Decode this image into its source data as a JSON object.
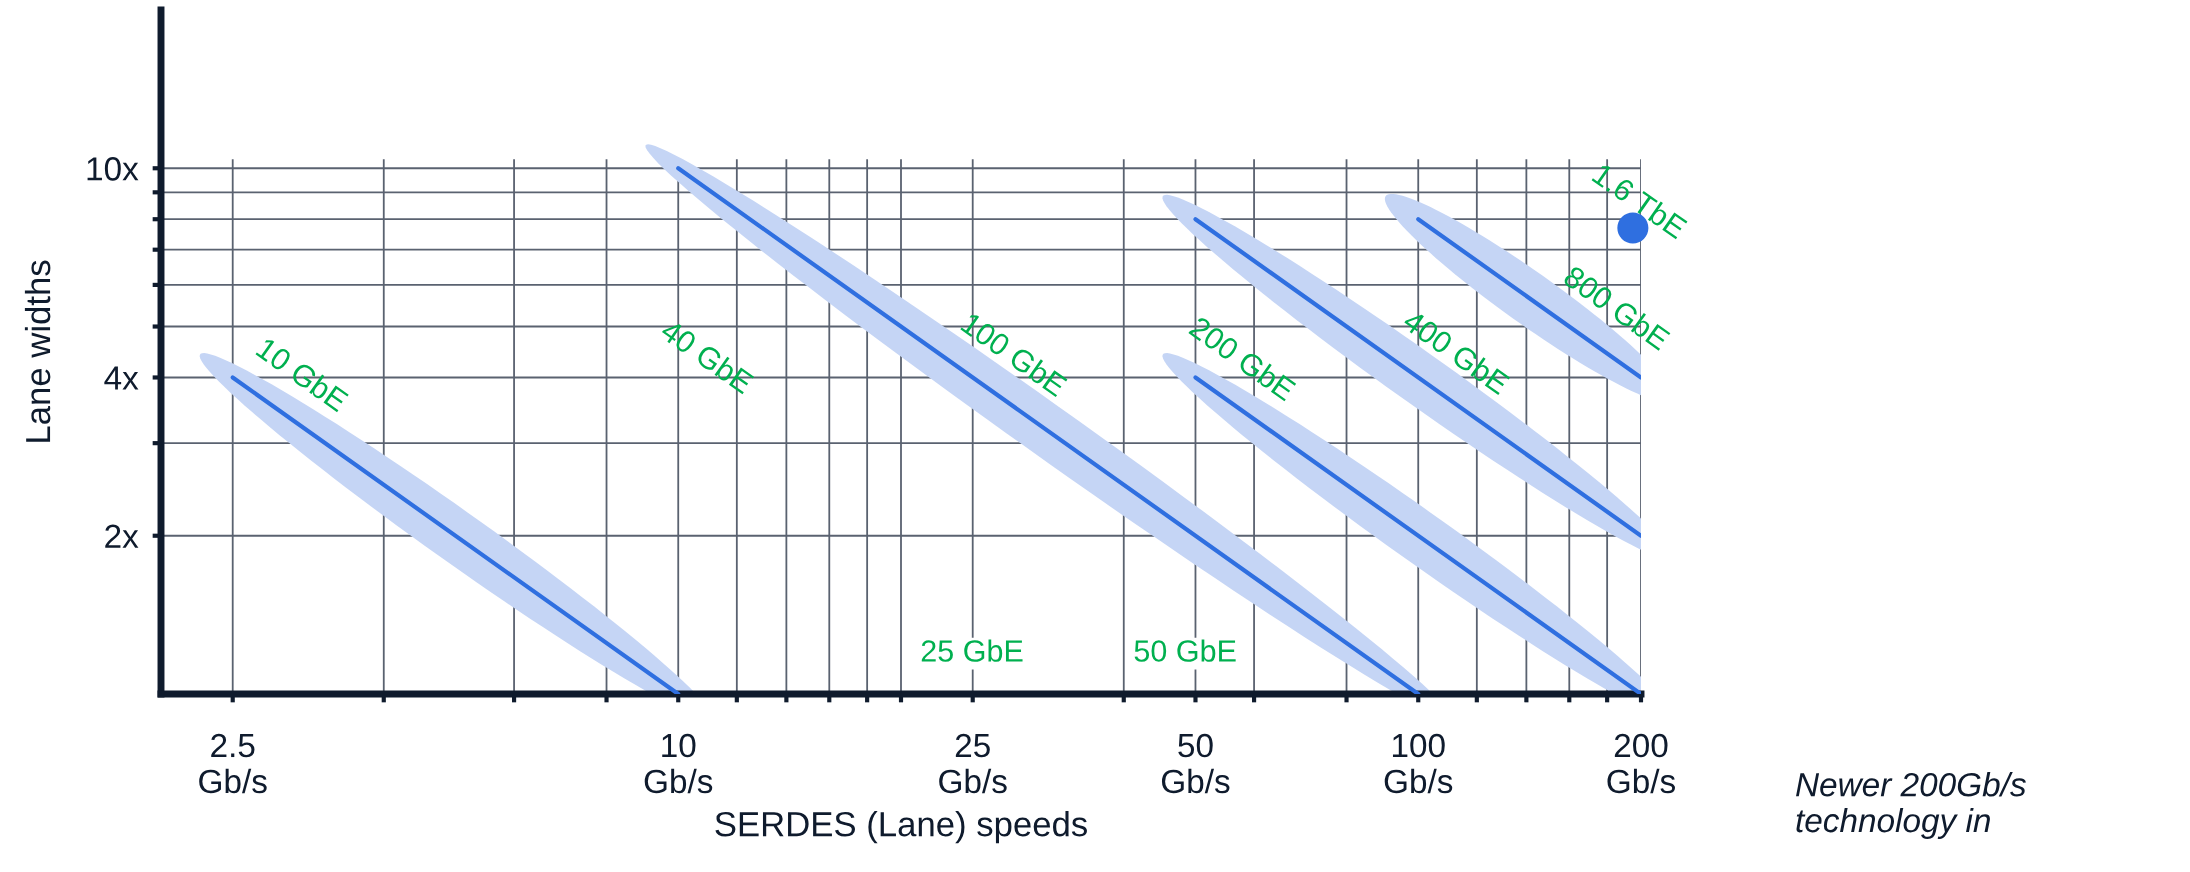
{
  "chart_data": {
    "type": "line",
    "xlabel": "SERDES (Lane) speeds",
    "ylabel": "Lane widths",
    "log": "xy",
    "xlim": [
      2,
      200
    ],
    "ylim": [
      1,
      20
    ],
    "xticks": [
      {
        "value": 2.5,
        "label": "2.5\nGb/s"
      },
      {
        "value": 4,
        "label": null
      },
      {
        "value": 6,
        "label": null
      },
      {
        "value": 8,
        "label": null
      },
      {
        "value": 10,
        "label": "10\nGb/s"
      },
      {
        "value": 12,
        "label": null
      },
      {
        "value": 14,
        "label": null
      },
      {
        "value": 16,
        "label": null
      },
      {
        "value": 18,
        "label": null
      },
      {
        "value": 20,
        "label": null
      },
      {
        "value": 25,
        "label": "25\nGb/s"
      },
      {
        "value": 40,
        "label": null
      },
      {
        "value": 50,
        "label": "50\nGb/s"
      },
      {
        "value": 60,
        "label": null
      },
      {
        "value": 80,
        "label": null
      },
      {
        "value": 100,
        "label": "100\nGb/s"
      },
      {
        "value": 120,
        "label": null
      },
      {
        "value": 140,
        "label": null
      },
      {
        "value": 160,
        "label": null
      },
      {
        "value": 180,
        "label": null
      },
      {
        "value": 200,
        "label": "200\nGb/s"
      }
    ],
    "yticks": [
      {
        "value": 2,
        "label": "2x"
      },
      {
        "value": 3,
        "label": null
      },
      {
        "value": 4,
        "label": "4x"
      },
      {
        "value": 5,
        "label": null
      },
      {
        "value": 6,
        "label": null
      },
      {
        "value": 7,
        "label": null
      },
      {
        "value": 8,
        "label": null
      },
      {
        "value": 9,
        "label": null
      },
      {
        "value": 10,
        "label": "10x"
      }
    ],
    "grid": true,
    "series": [
      {
        "name": "10 GbE",
        "color": "#2f6fe0",
        "x": [
          2.5,
          10
        ],
        "values": [
          4,
          1
        ]
      },
      {
        "name": "100 GbE",
        "color": "#2f6fe0",
        "x": [
          10,
          100
        ],
        "values": [
          10,
          1
        ]
      },
      {
        "name": "200 GbE",
        "color": "#2f6fe0",
        "x": [
          50,
          200
        ],
        "values": [
          4,
          1
        ]
      },
      {
        "name": "400 GbE",
        "color": "#2f6fe0",
        "x": [
          50,
          200
        ],
        "values": [
          8,
          2
        ]
      },
      {
        "name": "800 GbE",
        "color": "#2f6fe0",
        "x": [
          100,
          200
        ],
        "values": [
          8,
          4
        ]
      },
      {
        "name": "1.6 TbE",
        "type": "scatter",
        "color": "#2f6fe0",
        "x": [
          195
        ],
        "values": [
          7.7
        ]
      }
    ],
    "annotations": [
      "40 GbE",
      "25 GbE",
      "50 GbE",
      "Newer 200Gb/s technology in"
    ]
  }
}
